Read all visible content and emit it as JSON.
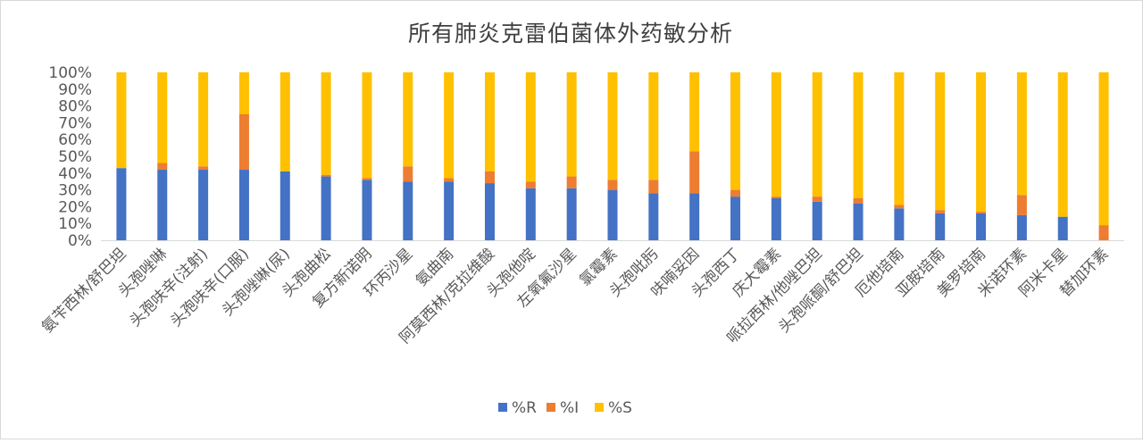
{
  "chart_data": {
    "type": "bar",
    "stacked": true,
    "title": "所有肺炎克雷伯菌体外药敏分析",
    "categories": [
      "氨苄西林/舒巴坦",
      "头孢唑啉",
      "头孢呋辛(注射)",
      "头孢呋辛(口服)",
      "头孢唑啉(尿)",
      "头孢曲松",
      "复方新诺明",
      "环丙沙星",
      "氨曲南",
      "阿莫西林/克拉维酸",
      "头孢他啶",
      "左氧氟沙星",
      "氯霉素",
      "头孢吡肟",
      "呋喃妥因",
      "头孢西丁",
      "庆大霉素",
      "哌拉西林/他唑巴坦",
      "头孢哌酮/舒巴坦",
      "厄他培南",
      "亚胺培南",
      "美罗培南",
      "米诺环素",
      "阿米卡星",
      "替加环素"
    ],
    "series": [
      {
        "name": "%R",
        "color": "#4472c4",
        "values": [
          43,
          42,
          42,
          42,
          41,
          38,
          36,
          35,
          35,
          34,
          31,
          31,
          30,
          28,
          28,
          26,
          25,
          23,
          22,
          19,
          16,
          16,
          15,
          14,
          0
        ]
      },
      {
        "name": "%I",
        "color": "#ed7d31",
        "values": [
          0,
          4,
          2,
          33,
          0,
          1,
          1,
          9,
          2,
          7,
          4,
          7,
          6,
          8,
          25,
          4,
          1,
          3,
          3,
          2,
          2,
          1,
          12,
          0,
          9
        ]
      },
      {
        "name": "%S",
        "color": "#ffc000",
        "values": [
          57,
          54,
          56,
          25,
          59,
          61,
          63,
          56,
          63,
          59,
          65,
          62,
          64,
          64,
          47,
          70,
          74,
          74,
          75,
          79,
          82,
          83,
          73,
          86,
          91
        ]
      }
    ],
    "y_ticks": [
      "0%",
      "10%",
      "20%",
      "30%",
      "40%",
      "50%",
      "60%",
      "70%",
      "80%",
      "90%",
      "100%"
    ],
    "ylim": [
      0,
      100
    ],
    "grid": false,
    "legend_position": "bottom"
  }
}
